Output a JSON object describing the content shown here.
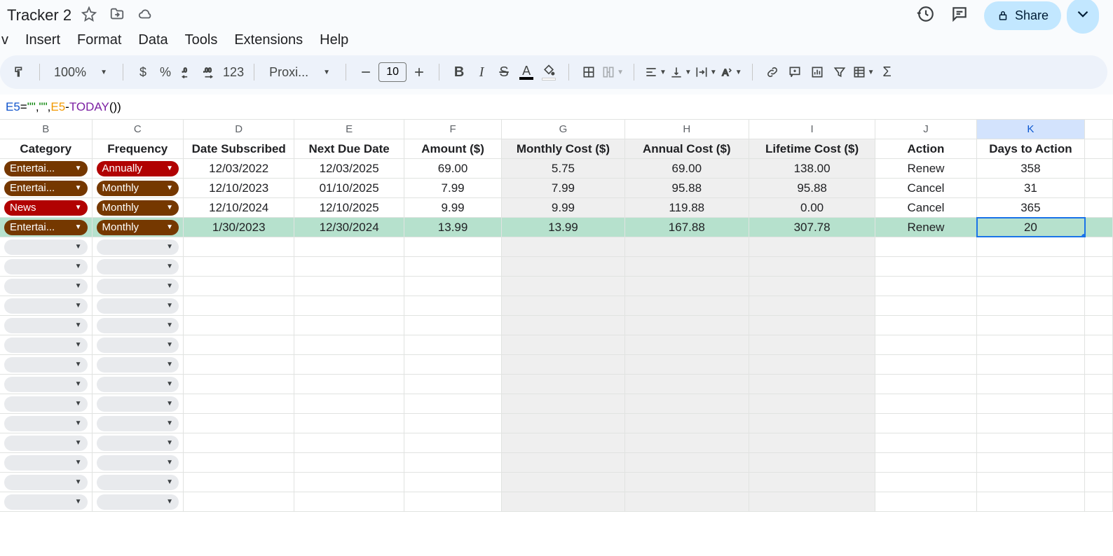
{
  "doc": {
    "title": "Tracker 2"
  },
  "menu": {
    "insert": "Insert",
    "format": "Format",
    "data": "Data",
    "tools": "Tools",
    "extensions": "Extensions",
    "help": "Help",
    "view_partial": "v"
  },
  "share": {
    "label": "Share"
  },
  "toolbar": {
    "zoom": "100%",
    "currency": "$",
    "percent": "%",
    "numfmt": "123",
    "font": "Proxi...",
    "fontsize": "10",
    "bold": "B",
    "italic": "I",
    "strike": "S",
    "textcolor_letter": "A",
    "textcolor_bar": "#000000",
    "sigma": "Σ"
  },
  "formula": {
    "prefix": "E5",
    "eq": "=",
    "q1": "\"\"",
    "comma1": ",",
    "q2": "\"\"",
    "comma2": ", ",
    "ref": "E5",
    "minus": "-",
    "fn": "TODAY",
    "paren": "())"
  },
  "columns": [
    {
      "letter": "B",
      "label": "Category",
      "cls": "col-B",
      "shaded": false,
      "selected": false
    },
    {
      "letter": "C",
      "label": "Frequency",
      "cls": "col-C",
      "shaded": false,
      "selected": false
    },
    {
      "letter": "D",
      "label": "Date Subscribed",
      "cls": "col-D",
      "shaded": false,
      "selected": false
    },
    {
      "letter": "E",
      "label": "Next Due Date",
      "cls": "col-E",
      "shaded": false,
      "selected": false
    },
    {
      "letter": "F",
      "label": "Amount ($)",
      "cls": "col-F",
      "shaded": false,
      "selected": false
    },
    {
      "letter": "G",
      "label": "Monthly Cost ($)",
      "cls": "col-G",
      "shaded": true,
      "selected": false
    },
    {
      "letter": "H",
      "label": "Annual Cost ($)",
      "cls": "col-H",
      "shaded": true,
      "selected": false
    },
    {
      "letter": "I",
      "label": "Lifetime Cost ($)",
      "cls": "col-I",
      "shaded": true,
      "selected": false
    },
    {
      "letter": "J",
      "label": "Action",
      "cls": "col-J",
      "shaded": false,
      "selected": false
    },
    {
      "letter": "K",
      "label": "Days to Action",
      "cls": "col-K",
      "shaded": false,
      "selected": true
    }
  ],
  "rows": [
    {
      "green": false,
      "cat": {
        "text": "Entertai...",
        "color": "brown"
      },
      "freq": {
        "text": "Annually",
        "color": "red"
      },
      "date_sub": "12/03/2022",
      "due": "12/03/2025",
      "amount": "69.00",
      "monthly": "5.75",
      "annual": "69.00",
      "lifetime": "138.00",
      "action": "Renew",
      "days": "358",
      "selected": false
    },
    {
      "green": false,
      "cat": {
        "text": "Entertai...",
        "color": "brown"
      },
      "freq": {
        "text": "Monthly",
        "color": "brown"
      },
      "date_sub": "12/10/2023",
      "due": "01/10/2025",
      "amount": "7.99",
      "monthly": "7.99",
      "annual": "95.88",
      "lifetime": "95.88",
      "action": "Cancel",
      "days": "31",
      "selected": false
    },
    {
      "green": false,
      "cat": {
        "text": "News",
        "color": "red"
      },
      "freq": {
        "text": "Monthly",
        "color": "brown"
      },
      "date_sub": "12/10/2024",
      "due": "12/10/2025",
      "amount": "9.99",
      "monthly": "9.99",
      "annual": "119.88",
      "lifetime": "0.00",
      "action": "Cancel",
      "days": "365",
      "selected": false
    },
    {
      "green": true,
      "cat": {
        "text": "Entertai...",
        "color": "brown"
      },
      "freq": {
        "text": "Monthly",
        "color": "brown"
      },
      "date_sub": "1/30/2023",
      "due": "12/30/2024",
      "amount": "13.99",
      "monthly": "13.99",
      "annual": "167.88",
      "lifetime": "307.78",
      "action": "Renew",
      "days": "20",
      "selected": true
    }
  ],
  "empty_row_count": 14,
  "chip_colors": {
    "brown": "#753800",
    "red": "#b10202",
    "gray": "#e8eaed"
  },
  "highlight_green": "#b6e1cd",
  "selection_blue": "#1a73e8"
}
